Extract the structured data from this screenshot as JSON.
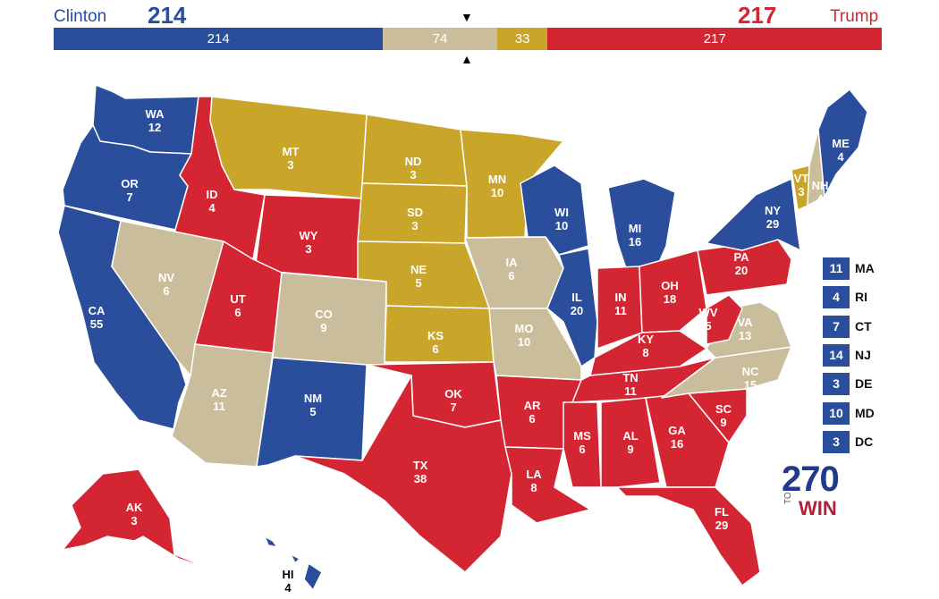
{
  "header": {
    "left_name": "Clinton",
    "left_total": "214",
    "right_name": "Trump",
    "right_total": "217",
    "bar": [
      {
        "label": "214",
        "value": 214,
        "color": "#2a4e9c"
      },
      {
        "label": "74",
        "value": 74,
        "color": "#c9bd9b"
      },
      {
        "label": "33",
        "value": 33,
        "color": "#c9a62a"
      },
      {
        "label": "217",
        "value": 217,
        "color": "#d42532"
      }
    ],
    "arrow_down": "▼",
    "arrow_up": "▲"
  },
  "colors": {
    "dem": "#2a4e9c",
    "rep": "#d42532",
    "tossup": "#c9bd9b",
    "lean": "#c9a62a"
  },
  "states": [
    {
      "abbr": "WA",
      "ev": "12",
      "party": "dem"
    },
    {
      "abbr": "OR",
      "ev": "7",
      "party": "dem"
    },
    {
      "abbr": "CA",
      "ev": "55",
      "party": "dem"
    },
    {
      "abbr": "ID",
      "ev": "4",
      "party": "rep"
    },
    {
      "abbr": "NV",
      "ev": "6",
      "party": "tossup"
    },
    {
      "abbr": "MT",
      "ev": "3",
      "party": "lean"
    },
    {
      "abbr": "WY",
      "ev": "3",
      "party": "rep"
    },
    {
      "abbr": "UT",
      "ev": "6",
      "party": "rep"
    },
    {
      "abbr": "AZ",
      "ev": "11",
      "party": "tossup"
    },
    {
      "abbr": "CO",
      "ev": "9",
      "party": "tossup"
    },
    {
      "abbr": "NM",
      "ev": "5",
      "party": "dem"
    },
    {
      "abbr": "ND",
      "ev": "3",
      "party": "lean"
    },
    {
      "abbr": "SD",
      "ev": "3",
      "party": "lean"
    },
    {
      "abbr": "NE",
      "ev": "5",
      "party": "lean"
    },
    {
      "abbr": "KS",
      "ev": "6",
      "party": "lean"
    },
    {
      "abbr": "OK",
      "ev": "7",
      "party": "rep"
    },
    {
      "abbr": "TX",
      "ev": "38",
      "party": "rep"
    },
    {
      "abbr": "MN",
      "ev": "10",
      "party": "lean"
    },
    {
      "abbr": "IA",
      "ev": "6",
      "party": "tossup"
    },
    {
      "abbr": "MO",
      "ev": "10",
      "party": "tossup"
    },
    {
      "abbr": "AR",
      "ev": "6",
      "party": "rep"
    },
    {
      "abbr": "LA",
      "ev": "8",
      "party": "rep"
    },
    {
      "abbr": "WI",
      "ev": "10",
      "party": "dem"
    },
    {
      "abbr": "IL",
      "ev": "20",
      "party": "dem"
    },
    {
      "abbr": "MI",
      "ev": "16",
      "party": "dem"
    },
    {
      "abbr": "IN",
      "ev": "11",
      "party": "rep"
    },
    {
      "abbr": "OH",
      "ev": "18",
      "party": "rep"
    },
    {
      "abbr": "KY",
      "ev": "8",
      "party": "rep"
    },
    {
      "abbr": "TN",
      "ev": "11",
      "party": "rep"
    },
    {
      "abbr": "MS",
      "ev": "6",
      "party": "rep"
    },
    {
      "abbr": "AL",
      "ev": "9",
      "party": "rep"
    },
    {
      "abbr": "GA",
      "ev": "16",
      "party": "rep"
    },
    {
      "abbr": "FL",
      "ev": "29",
      "party": "rep"
    },
    {
      "abbr": "SC",
      "ev": "9",
      "party": "rep"
    },
    {
      "abbr": "NC",
      "ev": "15",
      "party": "tossup"
    },
    {
      "abbr": "VA",
      "ev": "13",
      "party": "tossup"
    },
    {
      "abbr": "WV",
      "ev": "5",
      "party": "rep"
    },
    {
      "abbr": "PA",
      "ev": "20",
      "party": "rep"
    },
    {
      "abbr": "NY",
      "ev": "29",
      "party": "dem"
    },
    {
      "abbr": "VT",
      "ev": "3",
      "party": "lean"
    },
    {
      "abbr": "NH",
      "ev": "4",
      "party": "tossup"
    },
    {
      "abbr": "ME",
      "ev": "4",
      "party": "dem"
    },
    {
      "abbr": "AK",
      "ev": "3",
      "party": "rep"
    },
    {
      "abbr": "HI",
      "ev": "4",
      "party": "dem"
    }
  ],
  "small_states": [
    {
      "ev": "11",
      "abbr": "MA"
    },
    {
      "ev": "4",
      "abbr": "RI"
    },
    {
      "ev": "7",
      "abbr": "CT"
    },
    {
      "ev": "14",
      "abbr": "NJ"
    },
    {
      "ev": "3",
      "abbr": "DE"
    },
    {
      "ev": "10",
      "abbr": "MD"
    },
    {
      "ev": "3",
      "abbr": "DC"
    }
  ],
  "logo": {
    "number": "270",
    "to": "TO",
    "win": "WIN"
  }
}
